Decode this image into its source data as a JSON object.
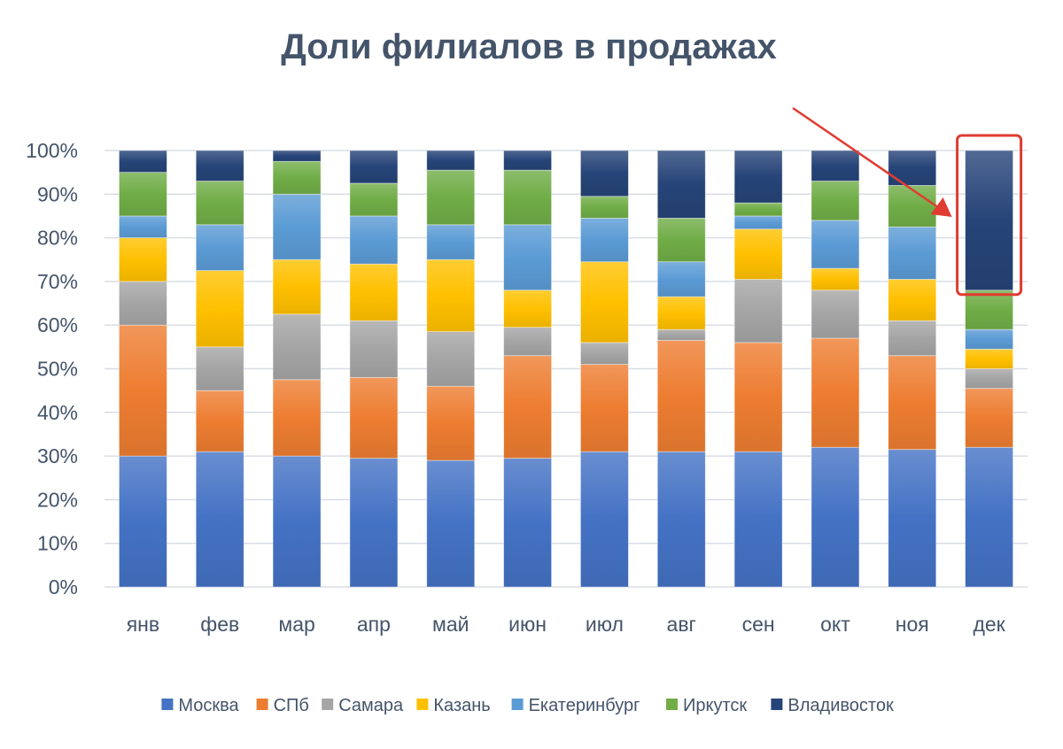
{
  "chart_data": {
    "type": "bar",
    "stacked": "percent",
    "title": "Доли филиалов в продажах",
    "xlabel": "",
    "ylabel": "",
    "categories": [
      "янв",
      "фев",
      "мар",
      "апр",
      "май",
      "июн",
      "июл",
      "авг",
      "сен",
      "окт",
      "ноя",
      "дек"
    ],
    "yticks": [
      "0%",
      "10%",
      "20%",
      "30%",
      "40%",
      "50%",
      "60%",
      "70%",
      "80%",
      "90%",
      "100%"
    ],
    "ylim": [
      0,
      100
    ],
    "grid": true,
    "legend_position": "bottom",
    "series": [
      {
        "name": "Москва",
        "color": "#4472c4",
        "values": [
          30,
          31,
          30,
          29.5,
          29,
          29.5,
          31,
          31,
          31,
          32,
          31.5,
          32
        ]
      },
      {
        "name": "СПб",
        "color": "#ed7d31",
        "values": [
          30,
          14,
          17.5,
          18.5,
          17,
          23.5,
          20,
          25.5,
          25,
          25,
          21.5,
          13.5
        ]
      },
      {
        "name": "Самара",
        "color": "#a5a5a5",
        "values": [
          10,
          10,
          15,
          13,
          12.5,
          6.5,
          5,
          2.5,
          14.5,
          11,
          8,
          4.5
        ]
      },
      {
        "name": "Казань",
        "color": "#ffc000",
        "values": [
          10,
          17.5,
          12.5,
          13,
          16.5,
          8.5,
          18.5,
          7.5,
          11.5,
          5,
          9.5,
          4.5
        ]
      },
      {
        "name": "Екатеринбург",
        "color": "#5b9bd5",
        "values": [
          5,
          10.5,
          15,
          11,
          8,
          15,
          10,
          8,
          3,
          11,
          12,
          4.5
        ]
      },
      {
        "name": "Иркутск",
        "color": "#70ad47",
        "values": [
          10,
          10,
          7.5,
          7.5,
          12.5,
          12.5,
          5,
          10,
          3,
          9,
          9.5,
          9
        ]
      },
      {
        "name": "Владивосток",
        "color": "#264478",
        "values": [
          5,
          7,
          2.5,
          7.5,
          4.5,
          4.5,
          10.5,
          15.5,
          12,
          7,
          8,
          32
        ]
      }
    ],
    "annotation": {
      "highlighted_category": "дек",
      "highlighted_series": "Владивосток",
      "color": "#e03c31"
    }
  }
}
